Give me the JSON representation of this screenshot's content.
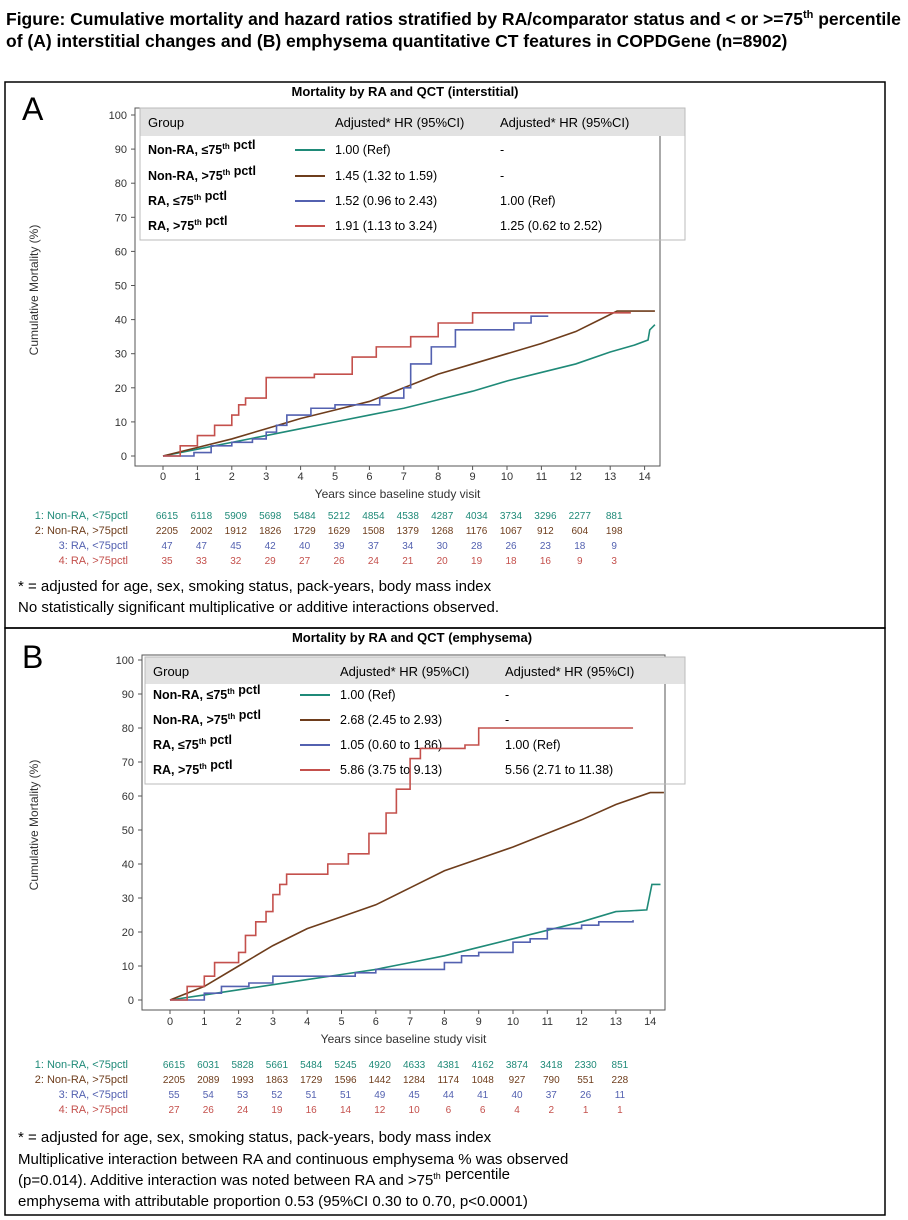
{
  "figure_title": "Figure: Cumulative mortality and hazard ratios stratified by RA/comparator status and < or >=75th percentile of (A) interstitial changes and (B) emphysema quantitative CT features in COPDGene (n=8902)",
  "colors": {
    "non_ra_le75": "#1f8a78",
    "non_ra_gt75": "#6e3d1c",
    "ra_le75": "#5361b0",
    "ra_gt75": "#c4504c",
    "header_bg": "#e2e2e2"
  },
  "chart_data": [
    {
      "panel_letter": "A",
      "type": "line",
      "title": "Mortality by RA and QCT (interstitial)",
      "xlabel": "Years since baseline study visit",
      "ylabel": "Cumulative Mortality (%)",
      "xlim": [
        0,
        14
      ],
      "ylim": [
        0,
        100
      ],
      "xticks": [
        0,
        1,
        2,
        3,
        4,
        5,
        6,
        7,
        8,
        9,
        10,
        11,
        12,
        13,
        14
      ],
      "yticks": [
        0,
        10,
        20,
        30,
        40,
        50,
        60,
        70,
        80,
        90,
        100
      ],
      "legend": {
        "headers": [
          "Group",
          "Adjusted* HR (95%CI)",
          "Adjusted* HR (95%CI)"
        ],
        "rows": [
          [
            "Non-RA, ≤75th pctl",
            "1.00 (Ref)",
            "-"
          ],
          [
            "Non-RA, >75th pctl",
            "1.45 (1.32 to 1.59)",
            "-"
          ],
          [
            "RA, ≤75th pctl",
            "1.52 (0.96 to 2.43)",
            "1.00 (Ref)"
          ],
          [
            "RA, >75th pctl",
            "1.91 (1.13 to 3.24)",
            "1.25 (0.62 to 2.52)"
          ]
        ]
      },
      "series": [
        {
          "step": false,
          "points": [
            [
              0,
              0
            ],
            [
              1,
              2
            ],
            [
              2,
              4
            ],
            [
              3,
              6
            ],
            [
              4,
              8
            ],
            [
              5,
              10
            ],
            [
              6,
              12
            ],
            [
              7,
              14
            ],
            [
              8,
              16.5
            ],
            [
              9,
              19
            ],
            [
              10,
              22
            ],
            [
              11,
              24.5
            ],
            [
              12,
              27
            ],
            [
              13,
              30.5
            ],
            [
              13.7,
              32.5
            ],
            [
              14.1,
              34
            ],
            [
              14.15,
              37
            ],
            [
              14.3,
              38.5
            ]
          ]
        },
        {
          "step": false,
          "points": [
            [
              0,
              0
            ],
            [
              1,
              2.5
            ],
            [
              2,
              5
            ],
            [
              3,
              8
            ],
            [
              4,
              11
            ],
            [
              5,
              13.5
            ],
            [
              6,
              16
            ],
            [
              7,
              20
            ],
            [
              8,
              24
            ],
            [
              9,
              27
            ],
            [
              10,
              30
            ],
            [
              11,
              33
            ],
            [
              12,
              36.5
            ],
            [
              12.7,
              40
            ],
            [
              13.2,
              42.5
            ],
            [
              14.3,
              42.5
            ]
          ]
        },
        {
          "step": true,
          "points": [
            [
              0,
              0
            ],
            [
              0.9,
              1
            ],
            [
              1.4,
              3
            ],
            [
              2,
              4
            ],
            [
              2.6,
              5
            ],
            [
              3,
              7
            ],
            [
              3.3,
              9
            ],
            [
              3.6,
              12
            ],
            [
              4.3,
              14
            ],
            [
              5,
              15
            ],
            [
              6.3,
              17
            ],
            [
              7,
              20
            ],
            [
              7.2,
              27
            ],
            [
              7.8,
              32
            ],
            [
              8.5,
              37
            ],
            [
              10.2,
              39
            ],
            [
              10.7,
              41
            ],
            [
              11.2,
              41
            ]
          ]
        },
        {
          "step": true,
          "points": [
            [
              0,
              0
            ],
            [
              0.5,
              3
            ],
            [
              1,
              6
            ],
            [
              1.5,
              9
            ],
            [
              2,
              12
            ],
            [
              2.2,
              15
            ],
            [
              2.4,
              17
            ],
            [
              3,
              23
            ],
            [
              4.4,
              24
            ],
            [
              5.5,
              29
            ],
            [
              6.2,
              32
            ],
            [
              7.2,
              35
            ],
            [
              8,
              39
            ],
            [
              9,
              42
            ],
            [
              13.6,
              42
            ]
          ]
        }
      ],
      "at_risk": {
        "labels": [
          "1: Non-RA, <75pctl",
          "2: Non-RA, >75pctl",
          "3: RA, <75pctl",
          "4: RA, >75pctl"
        ],
        "values": [
          [
            6615,
            6118,
            5909,
            5698,
            5484,
            5212,
            4854,
            4538,
            4287,
            4034,
            3734,
            3296,
            2277,
            881
          ],
          [
            2205,
            2002,
            1912,
            1826,
            1729,
            1629,
            1508,
            1379,
            1268,
            1176,
            1067,
            912,
            604,
            198
          ],
          [
            47,
            47,
            45,
            42,
            40,
            39,
            37,
            34,
            30,
            28,
            26,
            23,
            18,
            9
          ],
          [
            35,
            33,
            32,
            29,
            27,
            26,
            24,
            21,
            20,
            19,
            18,
            16,
            9,
            3
          ]
        ]
      },
      "footnotes": [
        "* = adjusted for age, sex, smoking status, pack-years, body mass index",
        "No statistically significant multiplicative or additive interactions observed."
      ]
    },
    {
      "panel_letter": "B",
      "type": "line",
      "title": "Mortality by RA and QCT (emphysema)",
      "xlabel": "Years since baseline study visit",
      "ylabel": "Cumulative Mortality (%)",
      "xlim": [
        0,
        14
      ],
      "ylim": [
        0,
        100
      ],
      "xticks": [
        0,
        1,
        2,
        3,
        4,
        5,
        6,
        7,
        8,
        9,
        10,
        11,
        12,
        13,
        14
      ],
      "yticks": [
        0,
        10,
        20,
        30,
        40,
        50,
        60,
        70,
        80,
        90,
        100
      ],
      "legend": {
        "headers": [
          "Group",
          "Adjusted* HR (95%CI)",
          "Adjusted* HR (95%CI)"
        ],
        "rows": [
          [
            "Non-RA, ≤75th pctl",
            "1.00 (Ref)",
            "-"
          ],
          [
            "Non-RA, >75th pctl",
            "2.68 (2.45 to 2.93)",
            "-"
          ],
          [
            "RA, ≤75th pctl",
            "1.05 (0.60 to 1.86)",
            "1.00 (Ref)"
          ],
          [
            "RA, >75th pctl",
            "5.86 (3.75 to 9.13)",
            "5.56 (2.71 to 11.38)"
          ]
        ]
      },
      "series": [
        {
          "step": false,
          "points": [
            [
              0,
              0
            ],
            [
              1,
              1.5
            ],
            [
              2,
              3
            ],
            [
              3,
              4.5
            ],
            [
              4,
              6
            ],
            [
              5,
              7.5
            ],
            [
              6,
              9
            ],
            [
              7,
              11
            ],
            [
              8,
              13
            ],
            [
              9,
              15.5
            ],
            [
              10,
              18
            ],
            [
              11,
              20.5
            ],
            [
              12,
              23
            ],
            [
              13,
              26
            ],
            [
              13.9,
              26.5
            ],
            [
              14.05,
              34
            ],
            [
              14.3,
              34
            ]
          ]
        },
        {
          "step": false,
          "points": [
            [
              0,
              0
            ],
            [
              1,
              4
            ],
            [
              2,
              10
            ],
            [
              3,
              16
            ],
            [
              4,
              21
            ],
            [
              5,
              24.5
            ],
            [
              6,
              28
            ],
            [
              7,
              33
            ],
            [
              8,
              38
            ],
            [
              9,
              41.5
            ],
            [
              10,
              45
            ],
            [
              11,
              49
            ],
            [
              12,
              53
            ],
            [
              13,
              57.5
            ],
            [
              14,
              61
            ],
            [
              14.4,
              61
            ]
          ]
        },
        {
          "step": true,
          "points": [
            [
              0,
              0
            ],
            [
              1,
              2
            ],
            [
              1.5,
              4
            ],
            [
              2.3,
              5
            ],
            [
              3,
              7
            ],
            [
              5.4,
              8
            ],
            [
              6,
              9
            ],
            [
              8,
              11
            ],
            [
              8.5,
              13
            ],
            [
              9,
              14
            ],
            [
              10,
              17
            ],
            [
              10.5,
              18
            ],
            [
              11,
              21
            ],
            [
              12,
              22
            ],
            [
              12.5,
              23
            ],
            [
              13.5,
              23.5
            ]
          ]
        },
        {
          "step": true,
          "points": [
            [
              0,
              0
            ],
            [
              0.5,
              4
            ],
            [
              1,
              7
            ],
            [
              1.3,
              11
            ],
            [
              2,
              14
            ],
            [
              2.2,
              19
            ],
            [
              2.5,
              23
            ],
            [
              2.8,
              26
            ],
            [
              3,
              31
            ],
            [
              3.2,
              34
            ],
            [
              3.4,
              37
            ],
            [
              4.6,
              40
            ],
            [
              5.2,
              43
            ],
            [
              5.8,
              49
            ],
            [
              6.3,
              55
            ],
            [
              6.6,
              62
            ],
            [
              7,
              71
            ],
            [
              7.3,
              74
            ],
            [
              8.6,
              75
            ],
            [
              9,
              80
            ],
            [
              13.5,
              80
            ]
          ]
        }
      ],
      "at_risk": {
        "labels": [
          "1: Non-RA, <75pctl",
          "2: Non-RA, >75pctl",
          "3: RA, <75pctl",
          "4: RA, >75pctl"
        ],
        "values": [
          [
            6615,
            6031,
            5828,
            5661,
            5484,
            5245,
            4920,
            4633,
            4381,
            4162,
            3874,
            3418,
            2330,
            851
          ],
          [
            2205,
            2089,
            1993,
            1863,
            1729,
            1596,
            1442,
            1284,
            1174,
            1048,
            927,
            790,
            551,
            228
          ],
          [
            55,
            54,
            53,
            52,
            51,
            51,
            49,
            45,
            44,
            41,
            40,
            37,
            26,
            11
          ],
          [
            27,
            26,
            24,
            19,
            16,
            14,
            12,
            10,
            6,
            6,
            4,
            2,
            1,
            1
          ]
        ]
      },
      "footnotes": [
        "* = adjusted for age, sex, smoking status, pack-years, body mass index",
        "Multiplicative interaction between RA and continuous emphysema % was observed",
        "(p=0.014). Additive interaction was noted between RA and >75th percentile",
        "emphysema with attributable proportion 0.53 (95%CI 0.30 to 0.70, p<0.0001)"
      ]
    }
  ]
}
